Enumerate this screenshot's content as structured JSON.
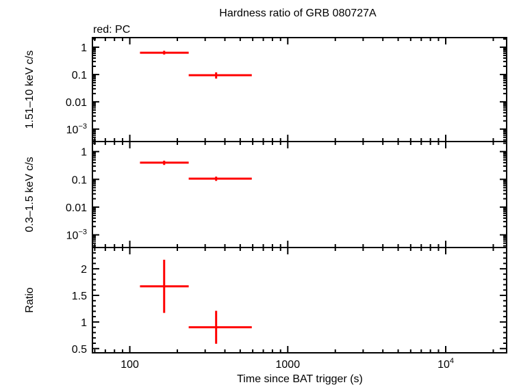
{
  "chart_data": {
    "type": "scatter",
    "title": "Hardness ratio of GRB 080727A",
    "subtitle": "red: PC",
    "xlabel": "Time since BAT trigger (s)",
    "xscale": "log",
    "xlim": [
      58,
      24300
    ],
    "xticks": [
      {
        "v": 100,
        "label": "100"
      },
      {
        "v": 1000,
        "label": "1000"
      },
      {
        "v": 10000,
        "label": "10^4"
      }
    ],
    "color": "#ff0000",
    "panels": [
      {
        "ylabel": "1.51–10 keV c/s",
        "yscale": "log",
        "ylim": [
          0.00035,
          2.25
        ],
        "yticks": [
          {
            "v": 1,
            "label": "1"
          },
          {
            "v": 0.1,
            "label": "0.1"
          },
          {
            "v": 0.01,
            "label": "0.01"
          },
          {
            "v": 0.001,
            "label": "10^-3"
          }
        ],
        "points": [
          {
            "x": 165,
            "xlo": 116,
            "xhi": 236,
            "y": 0.63,
            "ylo": 0.54,
            "yhi": 0.74
          },
          {
            "x": 352,
            "xlo": 236,
            "xhi": 592,
            "y": 0.094,
            "ylo": 0.071,
            "yhi": 0.12
          }
        ]
      },
      {
        "ylabel": "0.3–1.5 keV c/s",
        "yscale": "log",
        "ylim": [
          0.00035,
          2.3
        ],
        "yticks": [
          {
            "v": 1,
            "label": "1"
          },
          {
            "v": 0.1,
            "label": "0.1"
          },
          {
            "v": 0.01,
            "label": "0.01"
          },
          {
            "v": 0.001,
            "label": "10^-3"
          }
        ],
        "points": [
          {
            "x": 165,
            "xlo": 116,
            "xhi": 236,
            "y": 0.4,
            "ylo": 0.33,
            "yhi": 0.47
          },
          {
            "x": 352,
            "xlo": 236,
            "xhi": 592,
            "y": 0.106,
            "ylo": 0.088,
            "yhi": 0.125
          }
        ]
      },
      {
        "ylabel": "Ratio",
        "yscale": "linear",
        "ylim": [
          0.42,
          2.4
        ],
        "yticks": [
          {
            "v": 0.5,
            "label": "0.5"
          },
          {
            "v": 1,
            "label": "1"
          },
          {
            "v": 1.5,
            "label": "1.5"
          },
          {
            "v": 2,
            "label": "2"
          }
        ],
        "points": [
          {
            "x": 165,
            "xlo": 116,
            "xhi": 236,
            "y": 1.67,
            "ylo": 1.17,
            "yhi": 2.17
          },
          {
            "x": 352,
            "xlo": 236,
            "xhi": 592,
            "y": 0.9,
            "ylo": 0.59,
            "yhi": 1.21
          }
        ]
      }
    ]
  }
}
